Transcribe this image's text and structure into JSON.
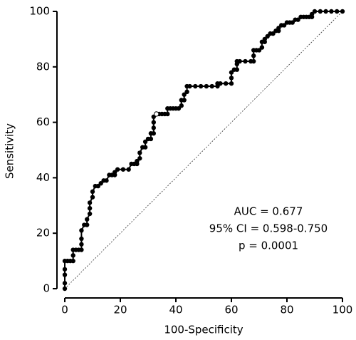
{
  "chart_data": {
    "type": "line",
    "xlabel": "100-Specificity",
    "ylabel": "Sensitivity",
    "x": [
      0,
      0,
      0,
      0,
      0,
      1,
      2,
      3,
      3,
      3,
      4,
      5,
      6,
      6,
      6,
      6,
      7,
      8,
      8,
      9,
      9,
      9,
      10,
      10,
      11,
      12,
      13,
      14,
      15,
      16,
      17,
      18,
      18,
      19,
      21,
      23,
      24,
      25,
      26,
      26,
      27,
      27,
      28,
      29,
      29,
      30,
      31,
      31,
      32,
      32,
      32,
      32,
      33,
      34,
      35,
      36,
      37,
      37,
      38,
      39,
      40,
      41,
      42,
      42,
      43,
      43,
      44,
      44,
      45,
      47,
      49,
      51,
      53,
      55,
      55,
      56,
      58,
      60,
      60,
      60,
      61,
      62,
      62,
      62,
      63,
      65,
      67,
      68,
      68,
      68,
      69,
      70,
      71,
      71,
      72,
      72,
      73,
      74,
      75,
      76,
      77,
      77,
      78,
      79,
      80,
      81,
      82,
      83,
      84,
      85,
      86,
      87,
      88,
      89,
      89,
      90,
      92,
      94,
      96,
      98,
      100
    ],
    "series": [
      {
        "color": "#000000",
        "values": [
          0,
          2,
          5,
          7,
          10,
          10,
          10,
          10,
          12,
          14,
          14,
          14,
          14,
          16,
          18,
          21,
          23,
          23,
          25,
          27,
          29,
          31,
          33,
          35,
          37,
          37,
          38,
          39,
          39,
          41,
          41,
          41,
          42,
          43,
          43,
          43,
          45,
          45,
          45,
          46,
          47,
          49,
          51,
          51,
          53,
          54,
          54,
          56,
          56,
          58,
          60,
          62,
          63,
          63,
          63,
          63,
          63,
          65,
          65,
          65,
          65,
          65,
          66,
          68,
          68,
          70,
          71,
          73,
          73,
          73,
          73,
          73,
          73,
          73,
          74,
          74,
          74,
          74,
          76,
          78,
          79,
          79,
          81,
          82,
          82,
          82,
          82,
          82,
          84,
          86,
          86,
          86,
          87,
          89,
          89,
          90,
          91,
          92,
          92,
          93,
          93,
          94,
          95,
          95,
          96,
          96,
          96,
          97,
          97,
          98,
          98,
          98,
          98,
          98,
          99,
          100,
          100,
          100,
          100,
          100,
          100
        ]
      }
    ],
    "criterion": {
      "x": 33,
      "y": 63
    },
    "reference_diagonal": true,
    "annotations": [
      "AUC = 0.677",
      "95% CI = 0.598-0.750",
      "p = 0.0001"
    ],
    "xlim": [
      0,
      100
    ],
    "xticks": [
      0,
      20,
      40,
      60,
      80,
      100
    ],
    "ylim": [
      0,
      100
    ],
    "yticks": [
      0,
      20,
      40,
      60,
      80,
      100
    ]
  }
}
